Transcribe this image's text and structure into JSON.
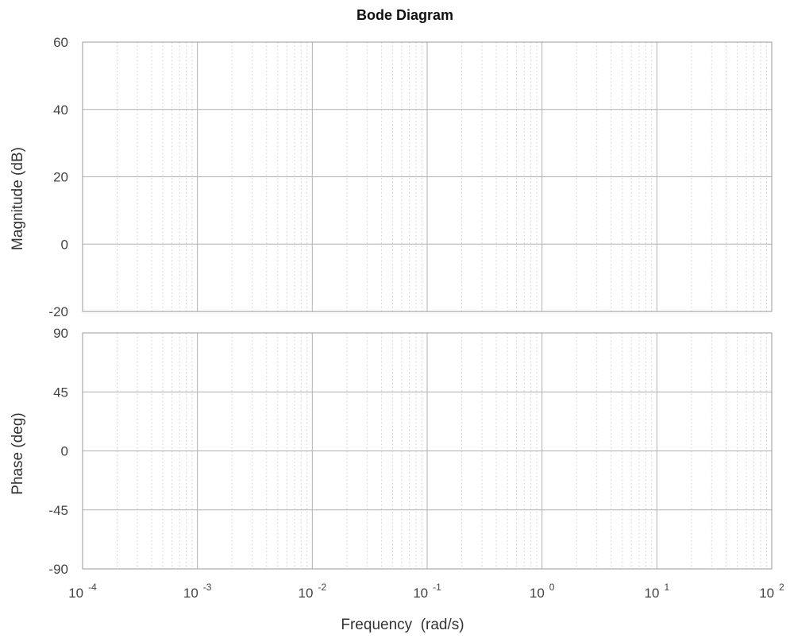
{
  "chart_data": {
    "type": "line",
    "title": "Bode Diagram",
    "xlabel": "Frequency  (rad/s)",
    "x_scale": "log",
    "xlim": [
      0.0001,
      100
    ],
    "x_ticks": [
      {
        "base": "10",
        "exp": "-4"
      },
      {
        "base": "10",
        "exp": "-3"
      },
      {
        "base": "10",
        "exp": "-2"
      },
      {
        "base": "10",
        "exp": "-1"
      },
      {
        "base": "10",
        "exp": "0"
      },
      {
        "base": "10",
        "exp": "1"
      },
      {
        "base": "10",
        "exp": "2"
      }
    ],
    "grid": true,
    "panels": [
      {
        "name": "magnitude",
        "ylabel": "Magnitude (dB)",
        "ylim": [
          -20,
          60
        ],
        "y_ticks": [
          "60",
          "40",
          "20",
          "0",
          "-20"
        ],
        "series": []
      },
      {
        "name": "phase",
        "ylabel": "Phase (deg)",
        "ylim": [
          -90,
          90
        ],
        "y_ticks": [
          "90",
          "45",
          "0",
          "-45",
          "-90"
        ],
        "series": []
      }
    ]
  },
  "colors": {
    "major_grid": "#b0b0b0",
    "minor_grid": "#cfcfcf",
    "frame": "#9a9a9a",
    "text": "#333333"
  }
}
